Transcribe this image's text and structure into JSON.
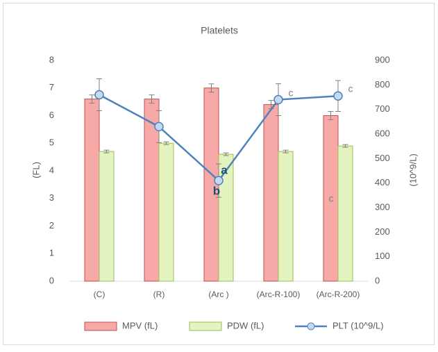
{
  "chart_data": {
    "type": "bar-line",
    "title": "Platelets",
    "categories": [
      "(C)",
      "(R)",
      "(Arc )",
      "(Arc-R-100)",
      "(Arc-R-200)"
    ],
    "ylabel": "(FL)",
    "y2label": "(10^9/L)",
    "ylim": [
      0,
      8
    ],
    "yticks": [
      0,
      1,
      2,
      3,
      4,
      5,
      6,
      7,
      8
    ],
    "y2lim": [
      0,
      900
    ],
    "y2ticks": [
      0,
      100,
      200,
      300,
      400,
      500,
      600,
      700,
      800,
      900
    ],
    "grid": false,
    "legend": "bottom",
    "series": [
      {
        "name": "MPV (fL)",
        "type": "bar",
        "color": "#c0504d",
        "fill": "#f7a9a8",
        "values": [
          6.6,
          6.6,
          7.0,
          6.4,
          6.0
        ],
        "errors": [
          0.15,
          0.15,
          0.15,
          0.15,
          0.15
        ]
      },
      {
        "name": "PDW (fL)",
        "type": "bar",
        "color": "#9bbb59",
        "fill": "#e4f4c0",
        "values": [
          4.7,
          5.0,
          4.6,
          4.7,
          4.9
        ],
        "errors": [
          0.05,
          0.05,
          0.05,
          0.05,
          0.05
        ]
      },
      {
        "name": "PLT (10^9/L)",
        "type": "line",
        "axis": "y2",
        "color": "#4f81bd",
        "fill": "#c5d9f1",
        "values": [
          760,
          630,
          410,
          740,
          755
        ],
        "errors": [
          65,
          65,
          68,
          65,
          63
        ]
      }
    ],
    "annotations": [
      {
        "text": "a"
      },
      {
        "text": "b"
      },
      {
        "text": "c"
      },
      {
        "text": "c"
      },
      {
        "text": "c"
      }
    ]
  }
}
